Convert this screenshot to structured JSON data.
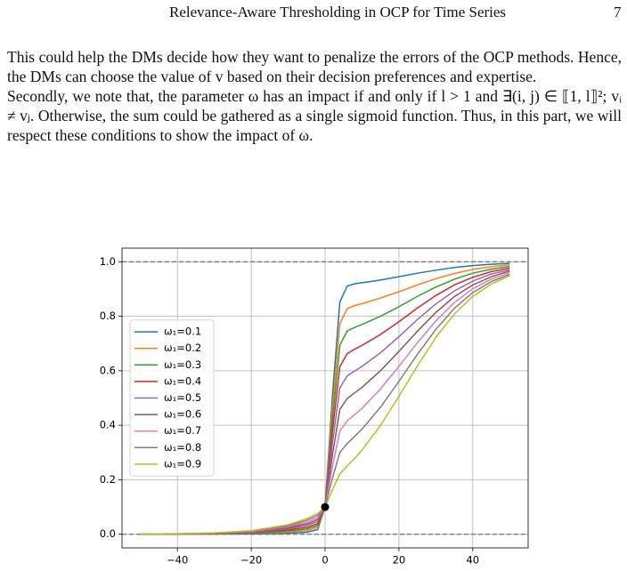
{
  "header": {
    "title": "Relevance-Aware Thresholding in OCP for Time Series",
    "page_number": "7"
  },
  "paragraphs": [
    "This could help the DMs decide how they want to penalize the errors of the OCP methods. Hence, the DMs can choose the value of v based on their decision preferences and expertise.",
    "Secondly, we note that, the parameter ω has an impact if and only if l > 1 and ∃(i, j) ∈ ⟦1, l⟧²; vᵢ ≠ vⱼ. Otherwise, the sum could be gathered as a single sigmoid function. Thus, in this part, we will respect these conditions to show the impact of ω."
  ],
  "chart_data": {
    "type": "line",
    "x": [
      -50,
      -40,
      -30,
      -20,
      -10,
      -5,
      -2,
      0,
      2,
      4,
      6,
      8,
      10,
      15,
      20,
      25,
      30,
      35,
      40,
      45,
      50
    ],
    "series": [
      {
        "name": "ω₁=0.1",
        "color": "#1f77b4",
        "values": [
          0.0,
          0.0,
          0.001,
          0.001,
          0.004,
          0.007,
          0.017,
          0.1,
          0.508,
          0.852,
          0.911,
          0.919,
          0.923,
          0.933,
          0.945,
          0.958,
          0.969,
          0.979,
          0.986,
          0.991,
          0.994
        ]
      },
      {
        "name": "ω₁=0.2",
        "color": "#ff7f0e",
        "values": [
          0.0,
          0.0,
          0.001,
          0.003,
          0.008,
          0.013,
          0.025,
          0.1,
          0.464,
          0.773,
          0.828,
          0.839,
          0.846,
          0.867,
          0.89,
          0.915,
          0.938,
          0.957,
          0.972,
          0.982,
          0.989
        ]
      },
      {
        "name": "ω₁=0.3",
        "color": "#2ca02c",
        "values": [
          0.0,
          0.001,
          0.002,
          0.004,
          0.012,
          0.019,
          0.032,
          0.1,
          0.421,
          0.694,
          0.746,
          0.759,
          0.77,
          0.8,
          0.835,
          0.873,
          0.907,
          0.936,
          0.958,
          0.973,
          0.983
        ]
      },
      {
        "name": "ω₁=0.4",
        "color": "#d62728",
        "values": [
          0.0,
          0.001,
          0.002,
          0.006,
          0.016,
          0.025,
          0.039,
          0.1,
          0.378,
          0.615,
          0.663,
          0.679,
          0.693,
          0.733,
          0.78,
          0.83,
          0.876,
          0.915,
          0.943,
          0.964,
          0.977
        ]
      },
      {
        "name": "ω₁=0.5",
        "color": "#9467bd",
        "values": [
          0.0,
          0.001,
          0.003,
          0.007,
          0.02,
          0.032,
          0.047,
          0.1,
          0.335,
          0.537,
          0.581,
          0.599,
          0.616,
          0.666,
          0.725,
          0.788,
          0.845,
          0.893,
          0.929,
          0.955,
          0.971
        ]
      },
      {
        "name": "ω₁=0.6",
        "color": "#8c564b",
        "values": [
          0.0,
          0.001,
          0.003,
          0.009,
          0.024,
          0.038,
          0.054,
          0.1,
          0.292,
          0.458,
          0.498,
          0.519,
          0.539,
          0.6,
          0.671,
          0.745,
          0.814,
          0.872,
          0.915,
          0.945,
          0.966
        ]
      },
      {
        "name": "ω₁=0.7",
        "color": "#e377c2",
        "values": [
          0.001,
          0.001,
          0.004,
          0.01,
          0.028,
          0.044,
          0.061,
          0.1,
          0.249,
          0.379,
          0.416,
          0.439,
          0.462,
          0.533,
          0.616,
          0.703,
          0.783,
          0.85,
          0.901,
          0.936,
          0.96
        ]
      },
      {
        "name": "ω₁=0.8",
        "color": "#7f7f7f",
        "values": [
          0.001,
          0.002,
          0.004,
          0.012,
          0.031,
          0.051,
          0.069,
          0.1,
          0.206,
          0.3,
          0.333,
          0.359,
          0.386,
          0.466,
          0.561,
          0.66,
          0.752,
          0.829,
          0.887,
          0.927,
          0.954
        ]
      },
      {
        "name": "ω₁=0.9",
        "color": "#bcbd22",
        "values": [
          0.001,
          0.002,
          0.005,
          0.013,
          0.035,
          0.057,
          0.076,
          0.1,
          0.163,
          0.221,
          0.251,
          0.278,
          0.309,
          0.399,
          0.506,
          0.618,
          0.722,
          0.808,
          0.873,
          0.918,
          0.949
        ]
      }
    ],
    "xlim": [
      -55,
      55
    ],
    "ylim": [
      -0.05,
      1.05
    ],
    "xticks": [
      {
        "value": -40,
        "label": "−40"
      },
      {
        "value": -20,
        "label": "−20"
      },
      0,
      20,
      40
    ],
    "yticks": [
      {
        "value": 0,
        "label": "0.0"
      },
      0.2,
      0.4,
      0.6,
      0.8,
      {
        "value": 1,
        "label": "1.0"
      }
    ],
    "hlines": [
      0,
      1
    ],
    "point": {
      "x": 0,
      "y": 0.1
    },
    "grid": true,
    "legend": "center left"
  }
}
